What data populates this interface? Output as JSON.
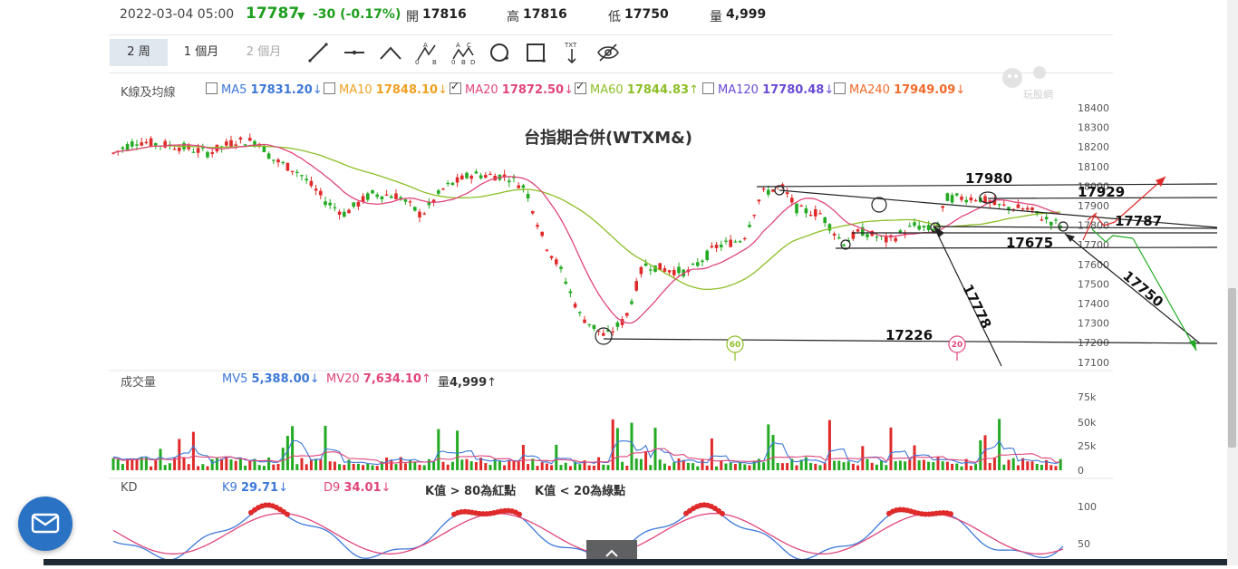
{
  "quote": {
    "datetime": "2022-03-04 05:00",
    "price": "17787",
    "change": "-30 (-0.17%)",
    "open_label": "開",
    "open": "17816",
    "high_label": "高",
    "high": "17816",
    "low_label": "低",
    "low": "17750",
    "vol_label": "量",
    "vol": "4,999"
  },
  "tabs": [
    "2 周",
    "1 個月",
    "2 個月"
  ],
  "tools": [
    "line-tool-icon",
    "segment-tool-icon",
    "angle-tool-icon",
    "abc-pattern-icon",
    "abcd-pattern-icon",
    "circle-tool-icon",
    "rectangle-tool-icon",
    "text-tool-icon",
    "hide-drawings-icon"
  ],
  "tool_labels": {
    "text": "TXT",
    "a": "A",
    "b": "B",
    "c": "C",
    "d": "D",
    "o": "0"
  },
  "ma": {
    "label": "K線及均線",
    "items": [
      {
        "name": "MA5",
        "value": "17831.20",
        "arrow": "↓",
        "checked": false,
        "color": "#3c78d8"
      },
      {
        "name": "MA10",
        "value": "17848.10",
        "arrow": "↓",
        "checked": false,
        "color": "#f0a020"
      },
      {
        "name": "MA20",
        "value": "17872.50",
        "arrow": "↓",
        "checked": true,
        "color": "#e0457b"
      },
      {
        "name": "MA60",
        "value": "17844.83",
        "arrow": "↑",
        "checked": true,
        "color": "#8cbf26"
      },
      {
        "name": "MA120",
        "value": "17780.48",
        "arrow": "↓",
        "checked": false,
        "color": "#6a4bd6"
      },
      {
        "name": "MA240",
        "value": "17949.09",
        "arrow": "↓",
        "checked": false,
        "color": "#f06a2a"
      }
    ]
  },
  "watermark": "玩股網",
  "chart_data": {
    "type": "candlestick",
    "title": "台指期合併(WTXM&)",
    "y_ticks": [
      "18400",
      "18300",
      "18200",
      "18100",
      "18000",
      "17900",
      "17800",
      "17700",
      "17600",
      "17500",
      "17400",
      "17300",
      "17200",
      "17100"
    ],
    "annotations": [
      "17980",
      "17929",
      "17787",
      "17675",
      "17226",
      "17778",
      "17750"
    ],
    "ma_markers": [
      "60",
      "20"
    ],
    "colors": {
      "up": "#e02a2a",
      "down": "#22aa22",
      "ma20": "#e0457b",
      "ma60": "#8cbf26"
    }
  },
  "volume": {
    "label": "成交量",
    "mv5_label": "MV5",
    "mv5": "5,388.00",
    "mv5_arrow": "↓",
    "mv20_label": "MV20",
    "mv20": "7,634.10",
    "mv20_arrow": "↑",
    "vol_label": "量",
    "vol": "4,999",
    "vol_arrow": "↑",
    "y_ticks": [
      "75k",
      "50k",
      "25k",
      "0"
    ]
  },
  "kd": {
    "label": "KD",
    "k_label": "K9",
    "k": "29.71",
    "k_arrow": "↓",
    "d_label": "D9",
    "d": "34.01",
    "d_arrow": "↓",
    "note1": "K值 > 80為紅點",
    "note2": "K值 < 20為綠點",
    "y_ticks": [
      "100",
      "50"
    ]
  }
}
